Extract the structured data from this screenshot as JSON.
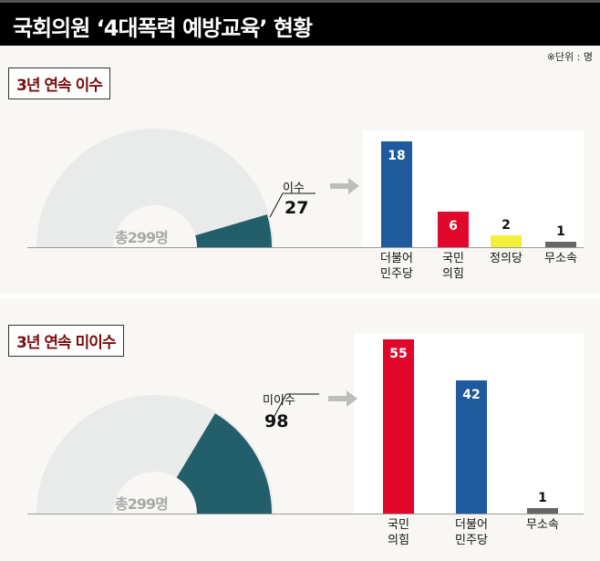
{
  "title": "국회의원 ‘4대폭력 예방교육’ 현황",
  "unit": "※단위 : 명",
  "chart_data": [
    {
      "type": "bar",
      "title": "3년 연속 이수",
      "total_label": "총299명",
      "total": 299,
      "highlight_label": "이수",
      "highlight_value": "27",
      "categories": [
        "더불어\n민주당",
        "국민\n의힘",
        "정의당",
        "무소속"
      ],
      "values": [
        18,
        6,
        2,
        1
      ],
      "colors": [
        "#1f5a9e",
        "#e1072b",
        "#f2ee3a",
        "#666666"
      ]
    },
    {
      "type": "bar",
      "title": "3년 연속 미이수",
      "total_label": "총299명",
      "total": 299,
      "highlight_label": "미이수",
      "highlight_value": "98",
      "categories": [
        "국민\n의힘",
        "더불어\n민주당",
        "무소속"
      ],
      "values": [
        55,
        42,
        1
      ],
      "colors": [
        "#e1072b",
        "#1f5a9e",
        "#666666"
      ]
    }
  ]
}
